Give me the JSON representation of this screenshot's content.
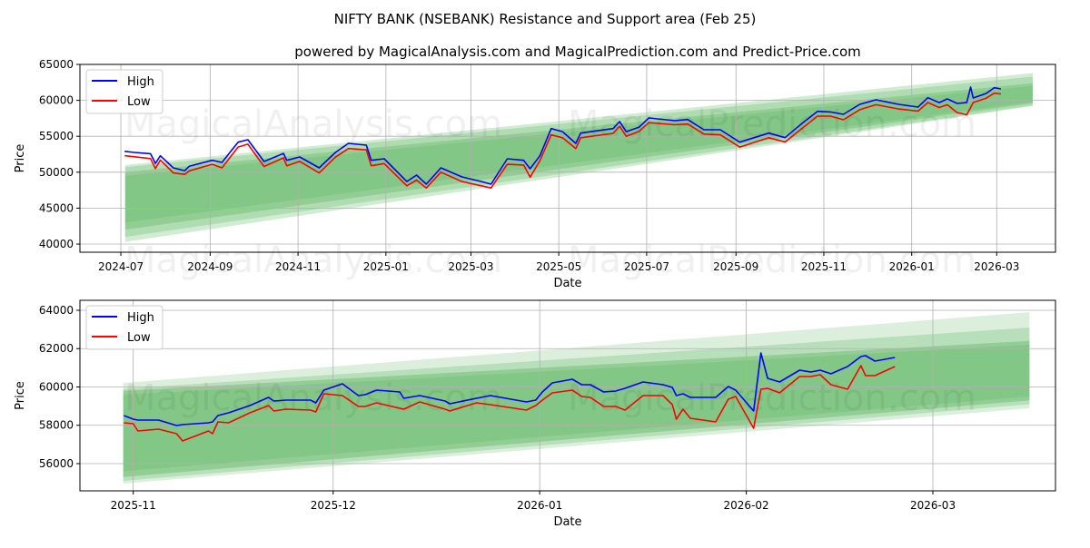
{
  "title": "NIFTY BANK (NSEBANK) Resistance and Support area (Feb 25)",
  "subtitle": "powered by MagicalAnalysis.com and MagicalPrediction.com and Predict-Price.com",
  "watermarks": [
    "MagicalAnalysis.com",
    "MagicalPrediction.com"
  ],
  "colors": {
    "high": "#0000ff",
    "low": "#ff0000",
    "band": "#4caf50"
  },
  "chart_data": [
    {
      "type": "line",
      "xlabel": "Date",
      "ylabel": "Price",
      "x_unit": "days since 2024-07-01",
      "xlim": [
        -28.4,
        648.8
      ],
      "ylim": [
        38864,
        65000
      ],
      "grid": true,
      "legend_position": "top-left",
      "legend": [
        "High",
        "Low"
      ],
      "yticks": [
        40000,
        45000,
        50000,
        55000,
        60000,
        65000
      ],
      "xticks": [
        {
          "x": 0,
          "label": "2024-07"
        },
        {
          "x": 62,
          "label": "2024-09"
        },
        {
          "x": 123,
          "label": "2024-11"
        },
        {
          "x": 184,
          "label": "2025-01"
        },
        {
          "x": 243,
          "label": "2025-03"
        },
        {
          "x": 304,
          "label": "2025-05"
        },
        {
          "x": 365,
          "label": "2025-07"
        },
        {
          "x": 427,
          "label": "2025-09"
        },
        {
          "x": 488,
          "label": "2025-11"
        },
        {
          "x": 549,
          "label": "2026-01"
        },
        {
          "x": 608,
          "label": "2026-03"
        }
      ],
      "x": [
        2.6,
        9.4,
        20.6,
        24,
        27.4,
        36.4,
        44.3,
        47.7,
        63.4,
        70.2,
        81.4,
        88.2,
        99.4,
        112.9,
        115.2,
        124.2,
        137.7,
        149,
        158,
        170.4,
        173.8,
        182.8,
        198.5,
        205.3,
        212,
        222.2,
        236.8,
        250.3,
        257,
        268.3,
        279.6,
        284.1,
        290.9,
        298.7,
        306.6,
        315.8,
        319.2,
        341.7,
        346.2,
        350.8,
        359.8,
        366.5,
        384.6,
        393.5,
        404.8,
        416.1,
        429.6,
        449.8,
        461.1,
        472.3,
        483.6,
        492.6,
        501.6,
        512.9,
        524.2,
        539.9,
        553.4,
        560.2,
        568.1,
        573.7,
        580.5,
        587.2,
        589.9,
        591.7,
        600.7,
        606.3,
        610.9
      ],
      "series": [
        {
          "name": "High",
          "values": [
            52910,
            52750,
            52580,
            51230,
            52280,
            50600,
            50220,
            50850,
            51650,
            51360,
            54180,
            54520,
            51490,
            52620,
            51650,
            52120,
            50600,
            52750,
            54010,
            53760,
            51650,
            51870,
            48700,
            49590,
            48330,
            50600,
            49340,
            48700,
            48330,
            51870,
            51650,
            50480,
            52280,
            56070,
            55650,
            54010,
            55440,
            56070,
            57040,
            55650,
            56280,
            57550,
            57170,
            57330,
            55910,
            55910,
            54180,
            55440,
            54810,
            56700,
            58470,
            58390,
            58050,
            59440,
            60070,
            59440,
            59060,
            60360,
            59690,
            60200,
            59570,
            59690,
            61840,
            60330,
            60960,
            61760,
            61590
          ]
        },
        {
          "name": "Low",
          "values": [
            52300,
            52150,
            51900,
            50500,
            51700,
            49900,
            49700,
            50200,
            51100,
            50600,
            53500,
            53900,
            50800,
            52000,
            50900,
            51500,
            49900,
            52100,
            53300,
            53100,
            50900,
            51200,
            48100,
            48900,
            47800,
            50000,
            48700,
            48100,
            47800,
            51100,
            51000,
            49300,
            51600,
            55200,
            54800,
            53300,
            54800,
            55400,
            56400,
            55000,
            55700,
            56900,
            56600,
            56700,
            55300,
            55200,
            53500,
            54800,
            54200,
            56000,
            57800,
            57800,
            57300,
            58700,
            59400,
            58800,
            58500,
            59700,
            59000,
            59400,
            58300,
            58000,
            59000,
            59700,
            60300,
            61000,
            60900
          ]
        }
      ],
      "bands": [
        {
          "x": [
            3,
            633
          ],
          "start": [
            40300,
            51000
          ],
          "end": [
            59200,
            63800
          ],
          "opacity": 0.25
        },
        {
          "x": [
            3,
            633
          ],
          "start": [
            41000,
            50700
          ],
          "end": [
            59300,
            63300
          ],
          "opacity": 0.25
        },
        {
          "x": [
            3,
            633
          ],
          "start": [
            42000,
            50000
          ],
          "end": [
            59600,
            62400
          ],
          "opacity": 0.3
        },
        {
          "x": [
            3,
            633
          ],
          "start": [
            43000,
            49500
          ],
          "end": [
            59800,
            62000
          ],
          "opacity": 0.2
        }
      ]
    },
    {
      "type": "line",
      "xlabel": "Date",
      "ylabel": "Price",
      "x_unit": "days since 2025-11-01",
      "xlim": [
        -8,
        138.4
      ],
      "ylim": [
        54580,
        64520
      ],
      "grid": true,
      "legend_position": "top-left",
      "legend": [
        "High",
        "Low"
      ],
      "yticks": [
        56000,
        58000,
        60000,
        62000,
        64000
      ],
      "xticks": [
        {
          "x": 0,
          "label": "2025-11"
        },
        {
          "x": 30,
          "label": "2025-12"
        },
        {
          "x": 61,
          "label": "2026-01"
        },
        {
          "x": 92,
          "label": "2026-02"
        },
        {
          "x": 120,
          "label": "2026-03"
        }
      ],
      "x": [
        -1.4,
        0,
        0.7,
        3.8,
        6.5,
        7.4,
        11.3,
        11.9,
        12.7,
        14.3,
        17.5,
        20.3,
        21.1,
        22.9,
        26.6,
        27.4,
        28.6,
        31.4,
        33.8,
        34.8,
        36.5,
        40,
        40.6,
        43,
        46.8,
        47.5,
        51.5,
        53.6,
        59,
        60.4,
        61.4,
        62.9,
        65.9,
        67.3,
        68.6,
        70.6,
        72.4,
        73.8,
        76.5,
        79.5,
        80.9,
        81.5,
        82.5,
        83.6,
        87.4,
        89.3,
        90.4,
        93.1,
        94.2,
        95.2,
        97,
        100,
        101.7,
        103.1,
        104.7,
        107.2,
        109.2,
        109.9,
        111.3,
        114.3
      ],
      "series": [
        {
          "name": "High",
          "values": [
            58509,
            58319,
            58272,
            58272,
            57988,
            58035,
            58130,
            58177,
            58509,
            58651,
            59030,
            59455,
            59266,
            59313,
            59313,
            59171,
            59834,
            60166,
            59550,
            59597,
            59834,
            59740,
            59408,
            59550,
            59266,
            59124,
            59408,
            59550,
            59219,
            59313,
            59740,
            60213,
            60402,
            60118,
            60118,
            59740,
            59787,
            59929,
            60260,
            60118,
            59976,
            59550,
            59645,
            59455,
            59455,
            60024,
            59834,
            58745,
            61775,
            60450,
            60260,
            60876,
            60781,
            60876,
            60686,
            61065,
            61586,
            61633,
            61349,
            61538
          ]
        },
        {
          "name": "Low",
          "values": [
            58130,
            58083,
            57704,
            57799,
            57562,
            57183,
            57704,
            57562,
            58177,
            58130,
            58651,
            59030,
            58745,
            58840,
            58793,
            58698,
            59645,
            59550,
            58982,
            58982,
            59171,
            58887,
            58840,
            59219,
            58840,
            58745,
            59171,
            59077,
            58793,
            59030,
            59313,
            59692,
            59834,
            59503,
            59455,
            58982,
            58982,
            58793,
            59550,
            59550,
            59077,
            58319,
            58840,
            58367,
            58177,
            59361,
            59503,
            57846,
            59882,
            59929,
            59692,
            60544,
            60544,
            60639,
            60118,
            59882,
            61112,
            60592,
            60592,
            61065
          ]
        }
      ],
      "bands": [
        {
          "x": [
            -1.5,
            134.5
          ],
          "start": [
            54960,
            60210
          ],
          "end": [
            58890,
            63900
          ],
          "opacity": 0.2
        },
        {
          "x": [
            -1.5,
            134.5
          ],
          "start": [
            55100,
            59900
          ],
          "end": [
            59100,
            63100
          ],
          "opacity": 0.25
        },
        {
          "x": [
            -1.5,
            134.5
          ],
          "start": [
            55300,
            59800
          ],
          "end": [
            59300,
            62400
          ],
          "opacity": 0.35
        },
        {
          "x": [
            -1.5,
            134.5
          ],
          "start": [
            55600,
            59600
          ],
          "end": [
            59500,
            62200
          ],
          "opacity": 0.2
        }
      ]
    }
  ]
}
